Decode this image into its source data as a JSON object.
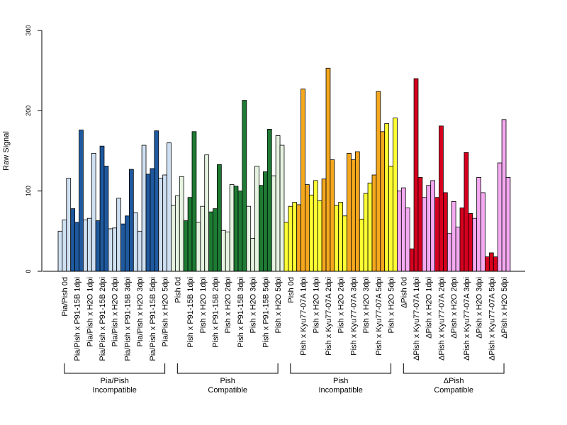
{
  "chart_data": {
    "type": "bar",
    "ylabel": "Raw Signal",
    "ylim": [
      0,
      300
    ],
    "yticks": [
      "0",
      "100",
      "200",
      "300"
    ],
    "grid": false,
    "colors": {
      "light_blue": "#cfe0f2",
      "dark_blue": "#1f5aa0",
      "pale_green": "#e5f3e0",
      "dark_green": "#1e7b34",
      "yellow": "#ffff33",
      "orange": "#f5a81e",
      "red": "#d7001f",
      "pink": "#f5a9f1"
    },
    "groups": [
      {
        "name_line1": "Pia/Pish",
        "name_line2": "Incompatible",
        "categories": [
          {
            "label": "Pia/Pish 0d",
            "color": "light_blue",
            "values": [
              50,
              64,
              116
            ]
          },
          {
            "label": "Pia/Pish x P91-15B 1dpi",
            "color": "dark_blue",
            "values": [
              78,
              61,
              176
            ]
          },
          {
            "label": "Pia/Pish x H2O 1dpi",
            "color": "light_blue",
            "values": [
              64,
              66,
              147
            ]
          },
          {
            "label": "Pia/Pish x P91-15B 2dpi",
            "color": "dark_blue",
            "values": [
              63,
              156,
              131
            ]
          },
          {
            "label": "Pia/Pish x H2O 2dpi",
            "color": "light_blue",
            "values": [
              53,
              54,
              91
            ]
          },
          {
            "label": "Pia/Pish x P91-15B 3dpi",
            "color": "dark_blue",
            "values": [
              59,
              69,
              127
            ]
          },
          {
            "label": "Pia/Pish x H2O 3dpi",
            "color": "light_blue",
            "values": [
              73,
              50,
              157
            ]
          },
          {
            "label": "Pia/Pish x P91-15B 5dpi",
            "color": "dark_blue",
            "values": [
              121,
              128,
              175
            ]
          },
          {
            "label": "Pia/Pish x H2O 5dpi",
            "color": "light_blue",
            "values": [
              116,
              120,
              160
            ]
          }
        ]
      },
      {
        "name_line1": "Pish",
        "name_line2": "Compatible",
        "categories": [
          {
            "label": "Pish 0d",
            "color": "pale_green",
            "values": [
              82,
              94,
              118
            ]
          },
          {
            "label": "Pish x P91-15B 1dpi",
            "color": "dark_green",
            "values": [
              63,
              92,
              174
            ]
          },
          {
            "label": "Pish x H2O 1dpi",
            "color": "pale_green",
            "values": [
              61,
              81,
              145
            ]
          },
          {
            "label": "Pish x P91-15B 2dpi",
            "color": "dark_green",
            "values": [
              74,
              78,
              133
            ]
          },
          {
            "label": "Pish x H2O 2dpi",
            "color": "pale_green",
            "values": [
              51,
              49,
              108
            ]
          },
          {
            "label": "Pish x P91-15B 3dpi",
            "color": "dark_green",
            "values": [
              106,
              100,
              213
            ]
          },
          {
            "label": "Pish x H2O 3dpi",
            "color": "pale_green",
            "values": [
              81,
              41,
              131
            ]
          },
          {
            "label": "Pish x P91-15B 5dpi",
            "color": "dark_green",
            "values": [
              107,
              124,
              177
            ]
          },
          {
            "label": "Pish x H2O 5dpi",
            "color": "pale_green",
            "values": [
              119,
              169,
              157
            ]
          }
        ]
      },
      {
        "name_line1": "Pish",
        "name_line2": "Incompatible",
        "categories": [
          {
            "label": "Pish 0d",
            "color": "yellow",
            "values": [
              61,
              81,
              86
            ]
          },
          {
            "label": "Pish x Kyu77-07A 1dpi",
            "color": "orange",
            "values": [
              83,
              227,
              108
            ]
          },
          {
            "label": "Pish x H2O 1dpi",
            "color": "yellow",
            "values": [
              95,
              113,
              88
            ]
          },
          {
            "label": "Pish x Kyu77-07A 2dpi",
            "color": "orange",
            "values": [
              115,
              253,
              139
            ]
          },
          {
            "label": "Pish x H2O 2dpi",
            "color": "yellow",
            "values": [
              82,
              86,
              69
            ]
          },
          {
            "label": "Pish x Kyu77-07A 3dpi",
            "color": "orange",
            "values": [
              147,
              139,
              149
            ]
          },
          {
            "label": "Pish x H2O 3dpi",
            "color": "yellow",
            "values": [
              65,
              97,
              110
            ]
          },
          {
            "label": "Pish x Kyu77-07A 5dpi",
            "color": "orange",
            "values": [
              120,
              224,
              174
            ]
          },
          {
            "label": "Pish x H2O 5dpi",
            "color": "yellow",
            "values": [
              184,
              131,
              191
            ]
          }
        ]
      },
      {
        "name_line1": "ΔPish",
        "name_line2": "Compatible",
        "categories": [
          {
            "label": "ΔPish 0d",
            "color": "pink",
            "values": [
              100,
              104,
              79
            ]
          },
          {
            "label": "ΔPish x Kyu77-07A 1dpi",
            "color": "red",
            "values": [
              28,
              240,
              117
            ]
          },
          {
            "label": "ΔPish x H2O 1dpi",
            "color": "pink",
            "values": [
              92,
              107,
              113
            ]
          },
          {
            "label": "ΔPish x Kyu77-07A 2dpi",
            "color": "red",
            "values": [
              92,
              181,
              98
            ]
          },
          {
            "label": "ΔPish x H2O 2dpi",
            "color": "pink",
            "values": [
              47,
              87,
              55
            ]
          },
          {
            "label": "ΔPish x Kyu77-07A 3dpi",
            "color": "red",
            "values": [
              79,
              148,
              72
            ]
          },
          {
            "label": "ΔPish x H2O 3dpi",
            "color": "pink",
            "values": [
              66,
              117,
              98
            ]
          },
          {
            "label": "ΔPish x Kyu77-07A 5dpi",
            "color": "red",
            "values": [
              18,
              23,
              18
            ]
          },
          {
            "label": "ΔPish x H2O 5dpi",
            "color": "pink",
            "values": [
              135,
              189,
              117
            ]
          }
        ]
      }
    ]
  }
}
